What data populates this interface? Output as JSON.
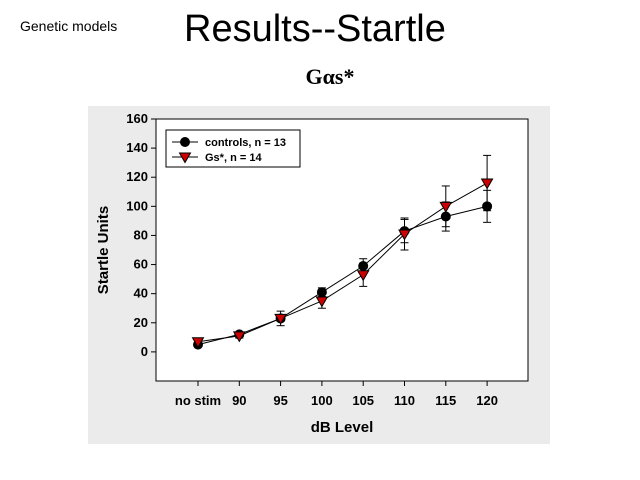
{
  "slide": {
    "corner_label": "Genetic models",
    "title": "Results--Startle"
  },
  "chart_data": {
    "type": "line",
    "title": "Gαs*",
    "xlabel": "dB Level",
    "ylabel": "Startle Units",
    "categories": [
      "no stim",
      "90",
      "95",
      "100",
      "105",
      "110",
      "115",
      "120"
    ],
    "ylim": [
      -20,
      160
    ],
    "yticks": [
      0,
      20,
      40,
      60,
      80,
      100,
      120,
      140,
      160
    ],
    "legend_position": "top-left",
    "grid": false,
    "series": [
      {
        "name": "controls, n = 13",
        "marker": "circle",
        "color": "#000000",
        "values": [
          5,
          12,
          23,
          41,
          59,
          83,
          93,
          100
        ],
        "errors": [
          1,
          1.5,
          2,
          3,
          5,
          8,
          10,
          11
        ]
      },
      {
        "name": "Gs*, n = 14",
        "marker": "triangle-down",
        "color": "#cc0000",
        "values": [
          7,
          11,
          23,
          35,
          53,
          81,
          100,
          116
        ],
        "errors": [
          1,
          1.5,
          5,
          5,
          8,
          11,
          14,
          19
        ]
      }
    ]
  }
}
